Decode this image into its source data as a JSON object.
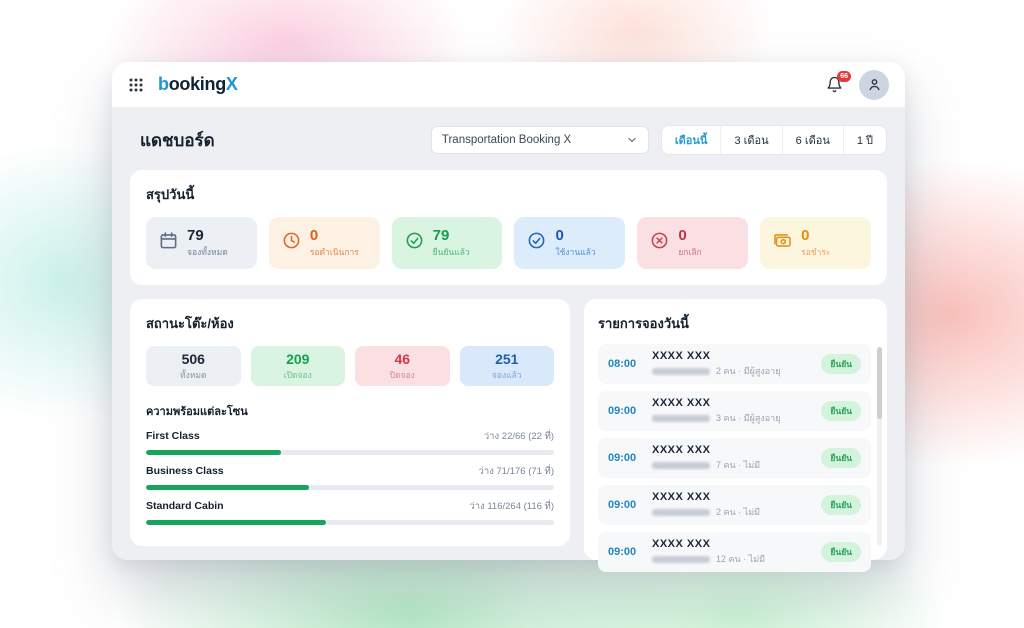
{
  "navbar": {
    "logo_b": "b",
    "logo_mid": "ooking",
    "logo_x": "X",
    "notification_count": "66"
  },
  "header": {
    "title": "แดชบอร์ด",
    "business_selector": "Transportation Booking X",
    "period_filters": [
      "เดือนนี้",
      "3 เดือน",
      "6 เดือน",
      "1 ปี"
    ],
    "active_filter_index": 0
  },
  "summary": {
    "title": "สรุปวันนี้",
    "cards": [
      {
        "icon": "calendar-icon",
        "value": "79",
        "label": "จองทั้งหมด"
      },
      {
        "icon": "clock-icon",
        "value": "0",
        "label": "รอดำเนินการ"
      },
      {
        "icon": "check-circle-icon",
        "value": "79",
        "label": "ยืนยันแล้ว"
      },
      {
        "icon": "check-circle-icon",
        "value": "0",
        "label": "ใช้งานแล้ว"
      },
      {
        "icon": "x-circle-icon",
        "value": "0",
        "label": "ยกเลิก"
      },
      {
        "icon": "banknote-icon",
        "value": "0",
        "label": "รอชำระ"
      }
    ]
  },
  "table_status": {
    "title": "สถานะโต๊ะ/ห้อง",
    "stats": [
      {
        "value": "506",
        "label": "ทั้งหมด"
      },
      {
        "value": "209",
        "label": "เปิดจอง"
      },
      {
        "value": "46",
        "label": "ปิดจอง"
      },
      {
        "value": "251",
        "label": "จองแล้ว"
      }
    ],
    "zones_title": "ความพร้อมแต่ละโซน",
    "zones": [
      {
        "name": "First Class",
        "availability": "ว่าง 22/66 (22 ที่)",
        "percent": 33
      },
      {
        "name": "Business Class",
        "availability": "ว่าง 71/176 (71 ที่)",
        "percent": 40
      },
      {
        "name": "Standard Cabin",
        "availability": "ว่าง 116/264 (116 ที่)",
        "percent": 44
      }
    ]
  },
  "bookings": {
    "title": "รายการจองวันนี้",
    "items": [
      {
        "time": "08:00",
        "name": "XXXX XXX",
        "details": "2 คน · มีผู้สูงอายุ",
        "status": "ยืนยัน"
      },
      {
        "time": "09:00",
        "name": "XXXX XXX",
        "details": "3 คน · มีผู้สูงอายุ",
        "status": "ยืนยัน"
      },
      {
        "time": "09:00",
        "name": "XXXX XXX",
        "details": "7 คน · ไม่มี",
        "status": "ยืนยัน"
      },
      {
        "time": "09:00",
        "name": "XXXX XXX",
        "details": "2 คน · ไม่มี",
        "status": "ยืนยัน"
      },
      {
        "time": "09:00",
        "name": "XXXX XXX",
        "details": "12 คน · ไม่มี",
        "status": "ยืนยัน"
      }
    ]
  },
  "colors": {
    "brand_blue": "#2196d3",
    "active_filter_blue": "#2e9ad6",
    "success_green": "#17a45c",
    "danger_red": "#c8414f",
    "warning_orange": "#e0662b",
    "info_blue": "#2565b4",
    "badge_red": "#e13b3b"
  }
}
